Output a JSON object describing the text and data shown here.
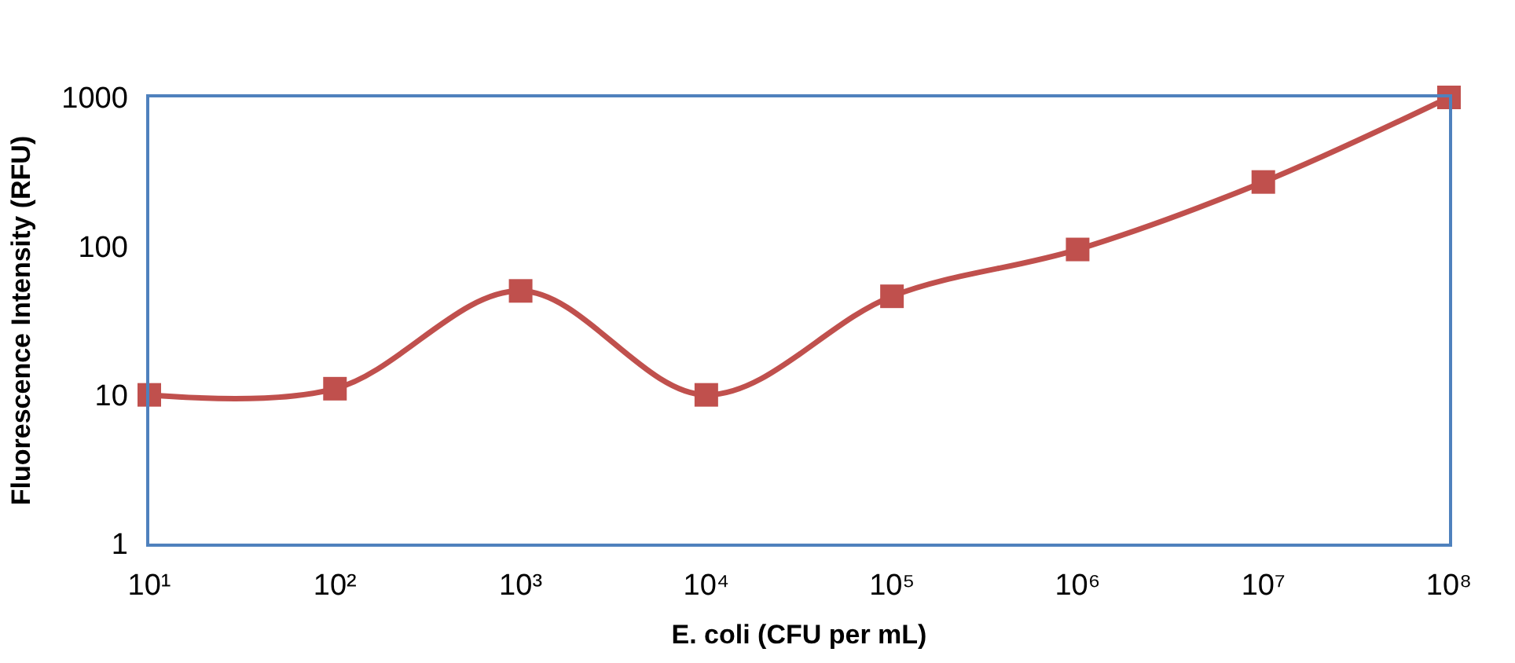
{
  "chart_data": {
    "type": "line",
    "xlabel": "E. coli (CFU per mL)",
    "ylabel": "Fluorescence Intensity (RFU)",
    "x": [
      10,
      100,
      1000,
      10000,
      100000,
      1000000,
      10000000,
      100000000
    ],
    "series": [
      {
        "color": "#c0504d",
        "values": [
          10,
          11,
          50,
          10,
          46,
          95,
          270,
          1000
        ]
      }
    ],
    "log": "xy",
    "xlim": [
      10,
      100000000
    ],
    "ylim": [
      1,
      1000
    ],
    "xticks": [
      {
        "value": 10,
        "label": "10¹"
      },
      {
        "value": 100,
        "label": "10²"
      },
      {
        "value": 1000,
        "label": "10³"
      },
      {
        "value": 10000,
        "label": "10⁴"
      },
      {
        "value": 100000,
        "label": "10⁵"
      },
      {
        "value": 1000000,
        "label": "10⁶"
      },
      {
        "value": 10000000,
        "label": "10⁷"
      },
      {
        "value": 100000000,
        "label": "10⁸"
      }
    ],
    "yticks": [
      1,
      10,
      100,
      1000
    ],
    "legend": false,
    "marker": "square",
    "line_style": "solid"
  }
}
